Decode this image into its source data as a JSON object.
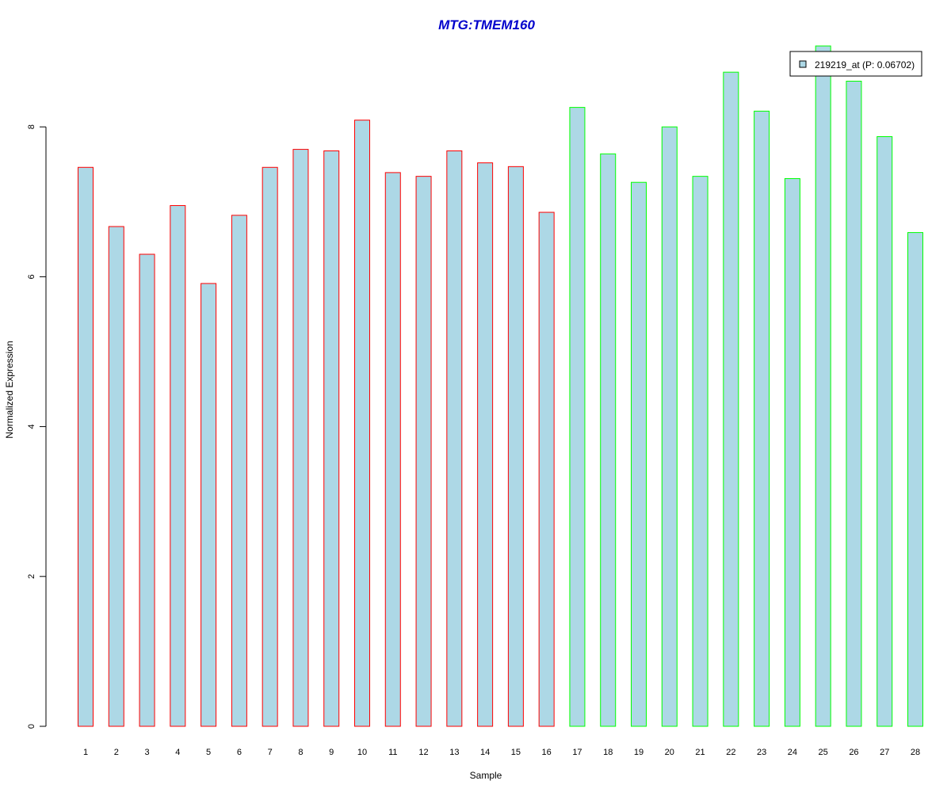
{
  "chart_data": {
    "type": "bar",
    "title": "MTG:TMEM160",
    "xlabel": "Sample",
    "ylabel": "Normalized Expression",
    "ylim": [
      0,
      9.2
    ],
    "yticks": [
      "0",
      "2",
      "4",
      "6",
      "8"
    ],
    "grid": false,
    "legend_position": "top-right",
    "series": [
      {
        "name": "219219_at (P: 0.06702)",
        "fill": "#add8e6",
        "categories": [
          "1",
          "2",
          "3",
          "4",
          "5",
          "6",
          "7",
          "8",
          "9",
          "10",
          "11",
          "12",
          "13",
          "14",
          "15",
          "16",
          "17",
          "18",
          "19",
          "20",
          "21",
          "22",
          "23",
          "24",
          "25",
          "26",
          "27",
          "28"
        ],
        "values": [
          7.46,
          6.67,
          6.3,
          6.95,
          5.91,
          6.82,
          7.46,
          7.7,
          7.68,
          8.09,
          7.39,
          7.34,
          7.68,
          7.52,
          7.47,
          6.86,
          8.26,
          7.64,
          7.26,
          8.0,
          7.34,
          8.73,
          8.21,
          7.31,
          9.08,
          8.61,
          7.87,
          6.59
        ],
        "group_colors": [
          "#ff0000",
          "#ff0000",
          "#ff0000",
          "#ff0000",
          "#ff0000",
          "#ff0000",
          "#ff0000",
          "#ff0000",
          "#ff0000",
          "#ff0000",
          "#ff0000",
          "#ff0000",
          "#ff0000",
          "#ff0000",
          "#ff0000",
          "#ff0000",
          "#00ff00",
          "#00ff00",
          "#00ff00",
          "#00ff00",
          "#00ff00",
          "#00ff00",
          "#00ff00",
          "#00ff00",
          "#00ff00",
          "#00ff00",
          "#00ff00",
          "#00ff00"
        ]
      }
    ]
  },
  "colors": {
    "title": "#0000cc",
    "axis": "#000000",
    "bar_fill": "#add8e6",
    "group1_border": "#ff0000",
    "group2_border": "#00ff00"
  }
}
